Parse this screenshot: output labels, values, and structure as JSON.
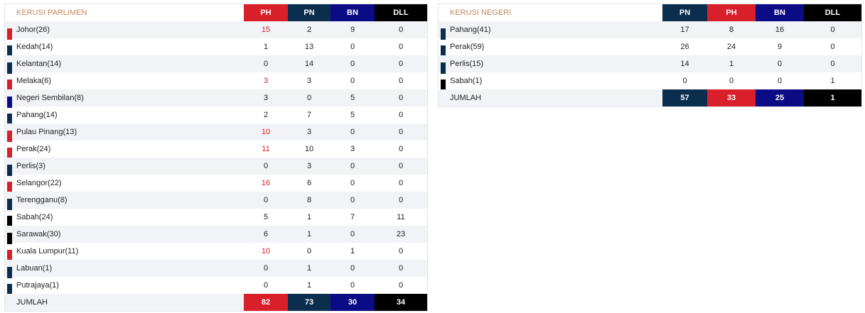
{
  "tables": [
    {
      "title": "KERUSI PARLIMEN",
      "total_label": "JUMLAH",
      "columns": [
        {
          "label": "PH",
          "color": "#d81f2a"
        },
        {
          "label": "PN",
          "color": "#0b2e4f"
        },
        {
          "label": "BN",
          "color": "#0b0b85"
        },
        {
          "label": "DLL",
          "color": "#000000"
        }
      ],
      "rows": [
        {
          "name": "Johor(26)",
          "color": "#d81f2a",
          "values": [
            15,
            2,
            9,
            0
          ]
        },
        {
          "name": "Kedah(14)",
          "color": "#0b2e4f",
          "values": [
            1,
            13,
            0,
            0
          ]
        },
        {
          "name": "Kelantan(14)",
          "color": "#0b2e4f",
          "values": [
            0,
            14,
            0,
            0
          ]
        },
        {
          "name": "Melaka(6)",
          "color": "#d81f2a",
          "values": [
            3,
            3,
            0,
            0
          ]
        },
        {
          "name": "Negeri Sembilan(8)",
          "color": "#0b0b85",
          "values": [
            3,
            0,
            5,
            0
          ]
        },
        {
          "name": "Pahang(14)",
          "color": "#0b2e4f",
          "values": [
            2,
            7,
            5,
            0
          ]
        },
        {
          "name": "Pulau Pinang(13)",
          "color": "#d81f2a",
          "values": [
            10,
            3,
            0,
            0
          ]
        },
        {
          "name": "Perak(24)",
          "color": "#d81f2a",
          "values": [
            11,
            10,
            3,
            0
          ]
        },
        {
          "name": "Perlis(3)",
          "color": "#0b2e4f",
          "values": [
            0,
            3,
            0,
            0
          ]
        },
        {
          "name": "Selangor(22)",
          "color": "#d81f2a",
          "values": [
            16,
            6,
            0,
            0
          ]
        },
        {
          "name": "Terengganu(8)",
          "color": "#0b2e4f",
          "values": [
            0,
            8,
            0,
            0
          ]
        },
        {
          "name": "Sabah(24)",
          "color": "#000000",
          "values": [
            5,
            1,
            7,
            11
          ]
        },
        {
          "name": "Sarawak(30)",
          "color": "#000000",
          "values": [
            6,
            1,
            0,
            23
          ]
        },
        {
          "name": "Kuala Lumpur(11)",
          "color": "#d81f2a",
          "values": [
            10,
            0,
            1,
            0
          ]
        },
        {
          "name": "Labuan(1)",
          "color": "#0b2e4f",
          "values": [
            0,
            1,
            0,
            0
          ]
        },
        {
          "name": "Putrajaya(1)",
          "color": "#0b2e4f",
          "values": [
            0,
            1,
            0,
            0
          ]
        }
      ],
      "totals": [
        82,
        73,
        30,
        34
      ]
    },
    {
      "title": "KERUSI NEGERI",
      "total_label": "JUMLAH",
      "columns": [
        {
          "label": "PN",
          "color": "#0b2e4f"
        },
        {
          "label": "PH",
          "color": "#d81f2a"
        },
        {
          "label": "BN",
          "color": "#0b0b85"
        },
        {
          "label": "DLL",
          "color": "#000000"
        }
      ],
      "rows": [
        {
          "name": "Pahang(41)",
          "color": "#0b2e4f",
          "values": [
            17,
            8,
            16,
            0
          ]
        },
        {
          "name": "Perak(59)",
          "color": "#0b2e4f",
          "values": [
            26,
            24,
            9,
            0
          ]
        },
        {
          "name": "Perlis(15)",
          "color": "#0b2e4f",
          "values": [
            14,
            1,
            0,
            0
          ]
        },
        {
          "name": "Sabah(1)",
          "color": "#000000",
          "values": [
            0,
            0,
            0,
            1
          ]
        }
      ],
      "totals": [
        57,
        33,
        25,
        1
      ]
    }
  ]
}
